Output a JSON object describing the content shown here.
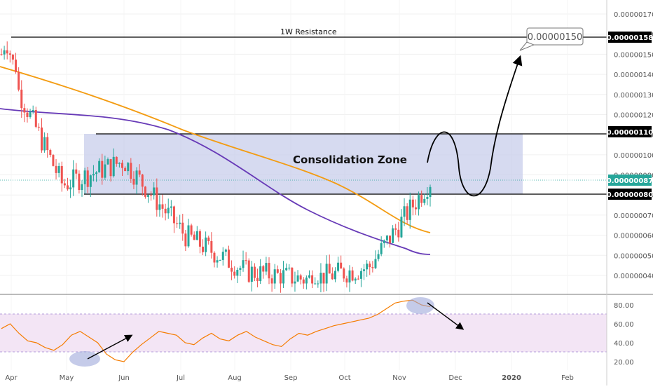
{
  "chart_data": [
    {
      "type": "candlestick",
      "title": "",
      "y_axis": {
        "ticks": [
          "0.00000170",
          "0.00000160",
          "0.00000150",
          "0.00000140",
          "0.00000130",
          "0.00000120",
          "0.00000110",
          "0.00000100",
          "0.00000090",
          "0.00000080",
          "0.00000070",
          "0.00000060",
          "0.00000050",
          "0.00000040"
        ],
        "ylim": [
          3.3e-07,
          1.72e-06
        ],
        "position": "right"
      },
      "x_axis": {
        "ticks": [
          "Apr",
          "May",
          "Jun",
          "Jul",
          "Aug",
          "Sep",
          "Oct",
          "Nov",
          "Dec",
          "2020",
          "Feb"
        ]
      },
      "price_labels": [
        {
          "name": "resistance",
          "value": "0.00000158"
        },
        {
          "name": "zone-top",
          "value": "0.00000110"
        },
        {
          "name": "last-price",
          "value": "0.00000087"
        },
        {
          "name": "zone-bottom",
          "value": "0.00000080"
        }
      ],
      "target_callout": "0.00000150",
      "annotations": {
        "resistance_label": "1W Resistance",
        "zone_label": "Consolidation Zone"
      },
      "close_series_approx": {
        "months": [
          "Apr",
          "May",
          "Jun",
          "Jul",
          "Aug",
          "Sep",
          "Oct",
          "Nov"
        ],
        "close": [
          1.5e-06,
          8.5e-07,
          9.7e-07,
          6e-07,
          4.2e-07,
          3.8e-07,
          4.4e-07,
          8.7e-07
        ]
      },
      "moving_averages": [
        {
          "color": "#f39c12"
        },
        {
          "color": "#673ab7"
        }
      ],
      "colors": {
        "up": "#26a69a",
        "down": "#ef5350",
        "zone": "#c5cae9",
        "rsi": "#f57c00",
        "rsi_band": "#f3e5f5"
      },
      "grid": true
    },
    {
      "type": "line",
      "title": "",
      "y_axis": {
        "ticks": [
          "80.00",
          "60.00",
          "40.00",
          "20.00"
        ],
        "ylim": [
          15,
          88
        ]
      },
      "band": [
        30,
        70
      ],
      "values": [
        55,
        60,
        50,
        42,
        40,
        35,
        32,
        38,
        48,
        52,
        46,
        40,
        28,
        22,
        20,
        30,
        38,
        45,
        52,
        50,
        48,
        40,
        38,
        45,
        50,
        44,
        42,
        48,
        52,
        46,
        42,
        38,
        36,
        44,
        50,
        48,
        52,
        55,
        58,
        60,
        62,
        64,
        66,
        70,
        76,
        82,
        84,
        85,
        80,
        78
      ]
    }
  ]
}
